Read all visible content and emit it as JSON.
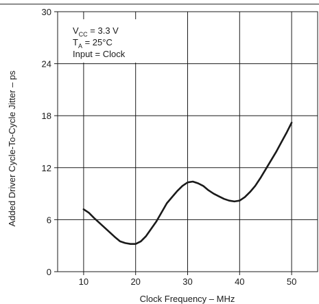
{
  "chart_data": {
    "type": "line",
    "title": "",
    "xlabel": "Clock Frequency –   MHz",
    "ylabel": "Added Driver Cycle-To-Cycle Jitter – ps",
    "xlim": [
      5,
      55
    ],
    "ylim": [
      0,
      30
    ],
    "xticks": [
      10,
      20,
      30,
      40,
      50
    ],
    "yticks": [
      0,
      6,
      12,
      18,
      24,
      30
    ],
    "grid": true,
    "annotations": [
      {
        "main": "V",
        "sub": "CC",
        "rest": " = 3.3 V"
      },
      {
        "main": "T",
        "sub": "A",
        "rest": " = 25°C"
      },
      {
        "main": "Input = Clock",
        "sub": "",
        "rest": ""
      }
    ],
    "series": [
      {
        "x": [
          10,
          11,
          12,
          14,
          16,
          17,
          18,
          19,
          20,
          21,
          22,
          24,
          26,
          28,
          29,
          30,
          31,
          32,
          33,
          34,
          35,
          36,
          37,
          38,
          39,
          40,
          41,
          42,
          43,
          44,
          45,
          46,
          47,
          48,
          49,
          50
        ],
        "values": [
          7.2,
          6.8,
          6.2,
          5.1,
          4.0,
          3.5,
          3.3,
          3.2,
          3.2,
          3.5,
          4.1,
          5.8,
          7.9,
          9.3,
          9.9,
          10.3,
          10.4,
          10.2,
          9.9,
          9.4,
          9.0,
          8.7,
          8.4,
          8.2,
          8.1,
          8.2,
          8.6,
          9.2,
          9.9,
          10.8,
          11.8,
          12.8,
          13.8,
          14.9,
          16.0,
          17.2
        ],
        "color": "#1a1a1a"
      }
    ]
  }
}
